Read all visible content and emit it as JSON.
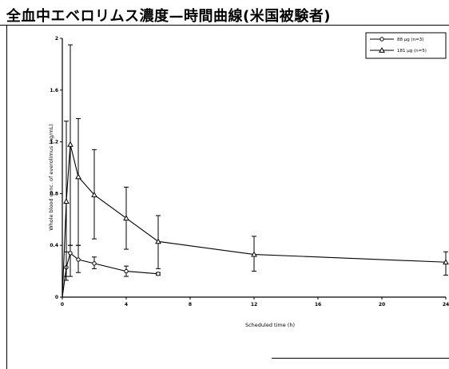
{
  "title": "全血中エベロリムス濃度—時間曲線(米国被験者)",
  "chart_data": {
    "type": "line",
    "title": "全血中エベロリムス濃度—時間曲線(米国被験者)",
    "xlabel": "Scheduled time (h)",
    "ylabel": "Whole blood conc. of everolimus (ng/mL)",
    "xlim": [
      0,
      24
    ],
    "ylim": [
      0,
      2
    ],
    "xticks": [
      0,
      4,
      8,
      12,
      16,
      20,
      24
    ],
    "yticks": [
      0,
      0.4,
      0.8,
      1.2,
      1.6,
      2
    ],
    "ytick_labels": [
      "0",
      "0.4",
      "0.8",
      "1.2",
      "1.6",
      "2"
    ],
    "grid": false,
    "legend_position": "top-right",
    "series": [
      {
        "name": "88 µg (n=3)",
        "marker": "circle",
        "x": [
          0,
          0.25,
          0.5,
          1,
          2,
          4,
          6
        ],
        "y": [
          0,
          0.23,
          0.34,
          0.29,
          0.26,
          0.2,
          0.18
        ],
        "err_low": [
          0,
          0.16,
          0.16,
          0.19,
          0.22,
          0.16,
          0.17
        ],
        "err_high": [
          0,
          0.35,
          0.4,
          0.4,
          0.31,
          0.24,
          0.19
        ]
      },
      {
        "name": "181 µg (n=5)",
        "marker": "triangle",
        "x": [
          0,
          0.25,
          0.5,
          1,
          2,
          4,
          6,
          12,
          24
        ],
        "y": [
          0,
          0.74,
          1.18,
          0.93,
          0.79,
          0.61,
          0.43,
          0.33,
          0.27
        ],
        "err_low": [
          0,
          0.13,
          0.4,
          0.4,
          0.45,
          0.37,
          0.22,
          0.2,
          0.17
        ],
        "err_high": [
          0,
          1.36,
          1.95,
          1.38,
          1.14,
          0.85,
          0.63,
          0.47,
          0.35
        ]
      }
    ]
  }
}
